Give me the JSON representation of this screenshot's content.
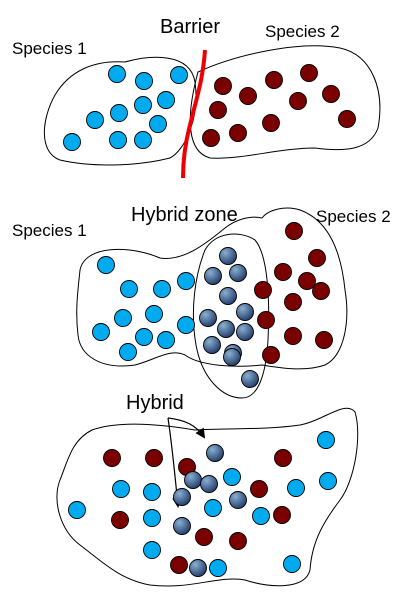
{
  "panels": {
    "top": {
      "label_left": "Species 1",
      "label_barrier": "Barrier",
      "label_right": "Species 2"
    },
    "middle": {
      "label_left": "Species 1",
      "label_zone": "Hybrid zone",
      "label_right": "Species 2"
    },
    "bottom": {
      "label_hybrid": "Hybrid"
    }
  },
  "colors": {
    "species1": "#00aaee",
    "species2": "#7a0000",
    "hybrid_light": "#8ab0d0",
    "hybrid_dark": "#1f3a66",
    "barrier": "#ee0000"
  }
}
